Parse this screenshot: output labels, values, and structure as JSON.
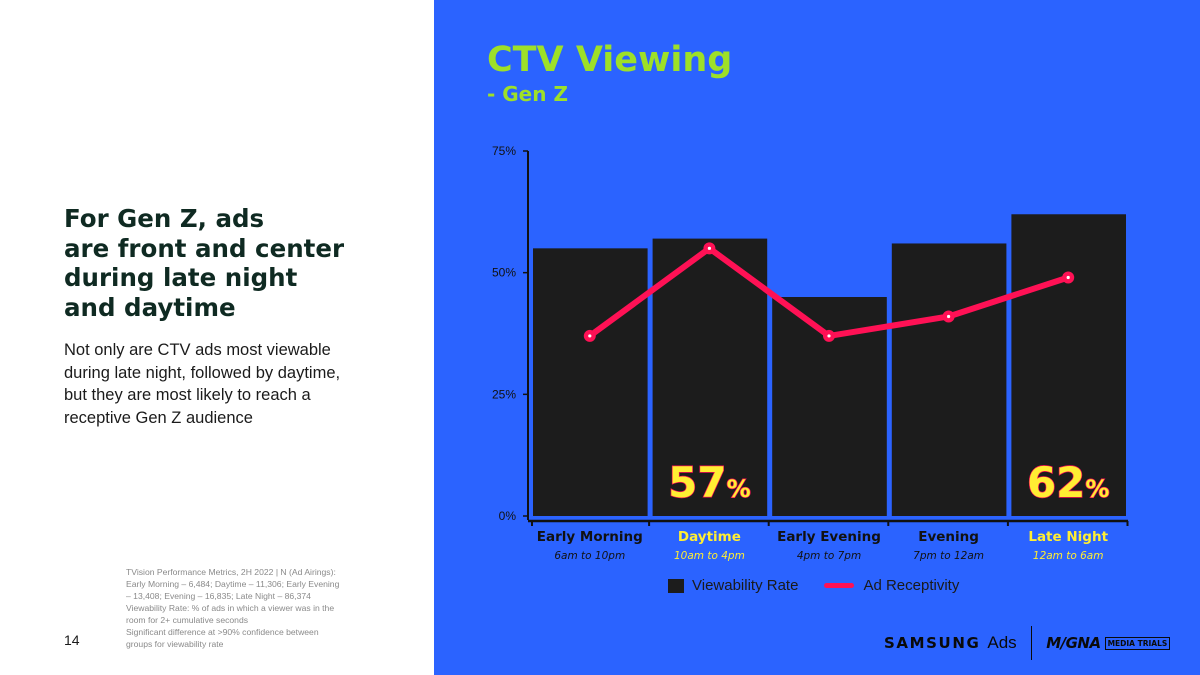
{
  "headline_lines": [
    "For Gen Z, ads",
    "are front and center",
    "during late night",
    "and daytime"
  ],
  "body_lines": [
    "Not only are CTV ads most viewable",
    "during late night, followed by daytime,",
    "but they are most likely to reach a",
    "receptive Gen Z audience"
  ],
  "footnote_lines": [
    "TVision Performance Metrics, 2H 2022  | N (Ad Airings):",
    "Early Morning – 6,484;  Daytime – 11,306;  Early Evening",
    "– 13,408;   Evening – 16,835;  Late Night – 86,374",
    "Viewability Rate: % of ads in which  a viewer was in the",
    "room for 2+ cumulative seconds",
    "Significant difference at >90% confidence  between",
    "groups for viewability rate"
  ],
  "page_number": "14",
  "brand": {
    "samsung": "SAMSUNG",
    "ads": "Ads",
    "magna": "M/GNA",
    "trials": "MEDIA TRIALS"
  },
  "colors": {
    "background_right": "#2b63ff",
    "title": "#9ee028",
    "bar": "#1c1c1c",
    "line": "#ff1155",
    "highlight": "#ffee33"
  },
  "chart_data": {
    "type": "bar",
    "title": "CTV Viewing",
    "subtitle": "- Gen Z",
    "categories": [
      "Early Morning",
      "Daytime",
      "Early Evening",
      "Evening",
      "Late Night"
    ],
    "category_times": [
      "6am to 10pm",
      "10am to 4pm",
      "4pm to 7pm",
      "7pm to 12am",
      "12am to 6am"
    ],
    "highlighted_categories": [
      "Daytime",
      "Late Night"
    ],
    "yticks": [
      "0%",
      "25%",
      "50%",
      "75%"
    ],
    "ylim": [
      0,
      75
    ],
    "series": [
      {
        "name": "Viewability Rate",
        "type": "bar",
        "values": [
          55,
          57,
          45,
          56,
          62
        ]
      },
      {
        "name": "Ad Receptivity",
        "type": "line",
        "values": [
          37,
          55,
          37,
          41,
          49
        ]
      }
    ],
    "data_labels": [
      {
        "category": "Daytime",
        "number": "57",
        "unit": "%"
      },
      {
        "category": "Late Night",
        "number": "62",
        "unit": "%"
      }
    ],
    "legend": {
      "position": "bottom-center",
      "entries": [
        "Viewability Rate",
        "Ad Receptivity"
      ]
    },
    "grid": false
  }
}
